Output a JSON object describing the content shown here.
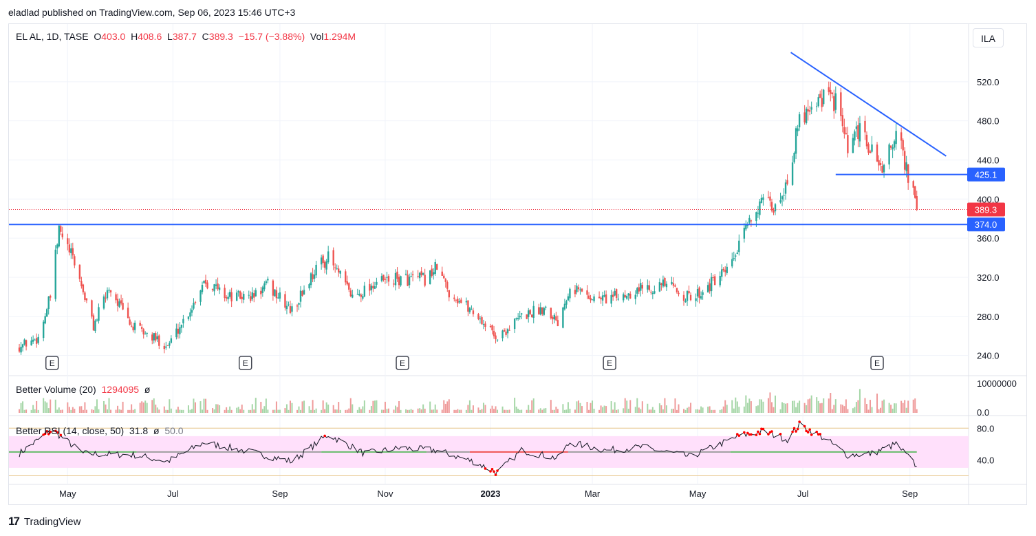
{
  "publisher_line": "eladlad published on TradingView.com, Sep 06, 2023 15:46 UTC+3",
  "footer": {
    "logo_glyph": "17",
    "brand": "TradingView"
  },
  "currency": "ILA",
  "legend": {
    "symbol": "EL AL, 1D, TASE",
    "o_label": "O",
    "o": "403.0",
    "h_label": "H",
    "h": "408.6",
    "l_label": "L",
    "l": "387.7",
    "c_label": "C",
    "c": "389.3",
    "change": "−15.7 (−3.88%)",
    "vol_label": "Vol",
    "vol": "1.294M"
  },
  "volume_legend": {
    "name": "Better Volume (20)",
    "value": "1294095",
    "symbol": "ø"
  },
  "rsi_legend": {
    "name": "Better RSI (14, close, 50)",
    "value": "31.8",
    "symbol": "ø",
    "mid": "50.0"
  },
  "colors": {
    "up": "#26a69a",
    "down": "#ef5350",
    "line": "#2962ff",
    "last": "#f23645",
    "rsi_band": "#ffe0fb"
  },
  "chart_data": {
    "type": "candlestick",
    "price_axis": {
      "min": 220,
      "max": 560,
      "ticks": [
        "240.0",
        "280.0",
        "320.0",
        "360.0",
        "400.0",
        "440.0",
        "480.0",
        "520.0"
      ]
    },
    "time_axis": [
      "May",
      "Jul",
      "Sep",
      "Nov",
      "2023",
      "Mar",
      "May",
      "Jul",
      "Sep"
    ],
    "price_path": [
      [
        "2022-04-01",
        248
      ],
      [
        "2022-04-14",
        258
      ],
      [
        "2022-04-21",
        300
      ],
      [
        "2022-04-26",
        368
      ],
      [
        "2022-05-05",
        335
      ],
      [
        "2022-05-16",
        270
      ],
      [
        "2022-05-25",
        310
      ],
      [
        "2022-06-07",
        270
      ],
      [
        "2022-06-28",
        250
      ],
      [
        "2022-07-12",
        290
      ],
      [
        "2022-07-19",
        318
      ],
      [
        "2022-08-02",
        300
      ],
      [
        "2022-08-16",
        300
      ],
      [
        "2022-08-25",
        312
      ],
      [
        "2022-09-08",
        285
      ],
      [
        "2022-09-22",
        330
      ],
      [
        "2022-09-29",
        340
      ],
      [
        "2022-10-13",
        300
      ],
      [
        "2022-10-27",
        315
      ],
      [
        "2022-11-10",
        318
      ],
      [
        "2022-11-24",
        318
      ],
      [
        "2022-12-01",
        330
      ],
      [
        "2022-12-08",
        305
      ],
      [
        "2022-12-22",
        285
      ],
      [
        "2023-01-05",
        258
      ],
      [
        "2023-01-19",
        280
      ],
      [
        "2023-02-02",
        290
      ],
      [
        "2023-02-09",
        275
      ],
      [
        "2023-02-16",
        312
      ],
      [
        "2023-03-02",
        298
      ],
      [
        "2023-03-16",
        300
      ],
      [
        "2023-03-30",
        310
      ],
      [
        "2023-04-13",
        312
      ],
      [
        "2023-04-27",
        298
      ],
      [
        "2023-05-18",
        325
      ],
      [
        "2023-05-25",
        350
      ],
      [
        "2023-06-01",
        385
      ],
      [
        "2023-06-08",
        395
      ],
      [
        "2023-06-15",
        390
      ],
      [
        "2023-06-22",
        420
      ],
      [
        "2023-06-29",
        480
      ],
      [
        "2023-07-06",
        500
      ],
      [
        "2023-07-13",
        505
      ],
      [
        "2023-07-20",
        500
      ],
      [
        "2023-07-27",
        450
      ],
      [
        "2023-08-03",
        470
      ],
      [
        "2023-08-10",
        448
      ],
      [
        "2023-08-17",
        430
      ],
      [
        "2023-08-24",
        470
      ],
      [
        "2023-08-31",
        425
      ],
      [
        "2023-09-05",
        389.3
      ]
    ],
    "last_price": "389.3",
    "horizontal_lines": [
      {
        "label": "425.1",
        "price": 425.1,
        "from": "2023-07-20",
        "to": "2023-09-22"
      },
      {
        "label": "374.0",
        "price": 374.0,
        "from": "2022-03-28",
        "to": "2023-09-22"
      }
    ],
    "trend_line": {
      "from": [
        "2023-06-24",
        550
      ],
      "to": [
        "2023-09-22",
        444
      ]
    },
    "earnings_markers": [
      {
        "label": "E",
        "date": "2022-04-22"
      },
      {
        "label": "E",
        "date": "2022-08-12"
      },
      {
        "label": "E",
        "date": "2022-11-11"
      },
      {
        "label": "E",
        "date": "2023-03-11"
      },
      {
        "label": "E",
        "date": "2023-08-13"
      }
    ],
    "volume": {
      "axis_ticks": [
        "10000000",
        "0.0"
      ],
      "max": 10000000,
      "last": 1294095
    },
    "rsi": {
      "axis_ticks": [
        "80.0",
        "40.0"
      ],
      "band": [
        30,
        70
      ],
      "guides": [
        80,
        20
      ],
      "mid": 50,
      "path": [
        [
          "2022-04-01",
          45
        ],
        [
          "2022-04-22",
          78
        ],
        [
          "2022-05-10",
          48
        ],
        [
          "2022-06-10",
          46
        ],
        [
          "2022-06-28",
          38
        ],
        [
          "2022-07-19",
          62
        ],
        [
          "2022-08-15",
          50
        ],
        [
          "2022-09-08",
          38
        ],
        [
          "2022-09-29",
          72
        ],
        [
          "2022-10-20",
          48
        ],
        [
          "2022-11-10",
          55
        ],
        [
          "2022-12-01",
          52
        ],
        [
          "2022-12-22",
          38
        ],
        [
          "2023-01-05",
          24
        ],
        [
          "2023-01-19",
          52
        ],
        [
          "2023-02-09",
          42
        ],
        [
          "2023-02-16",
          62
        ],
        [
          "2023-03-09",
          52
        ],
        [
          "2023-03-30",
          56
        ],
        [
          "2023-04-27",
          44
        ],
        [
          "2023-05-25",
          70
        ],
        [
          "2023-06-08",
          76
        ],
        [
          "2023-06-22",
          66
        ],
        [
          "2023-06-29",
          84
        ],
        [
          "2023-07-13",
          68
        ],
        [
          "2023-07-27",
          46
        ],
        [
          "2023-08-10",
          48
        ],
        [
          "2023-08-24",
          60
        ],
        [
          "2023-09-05",
          32
        ]
      ]
    }
  }
}
